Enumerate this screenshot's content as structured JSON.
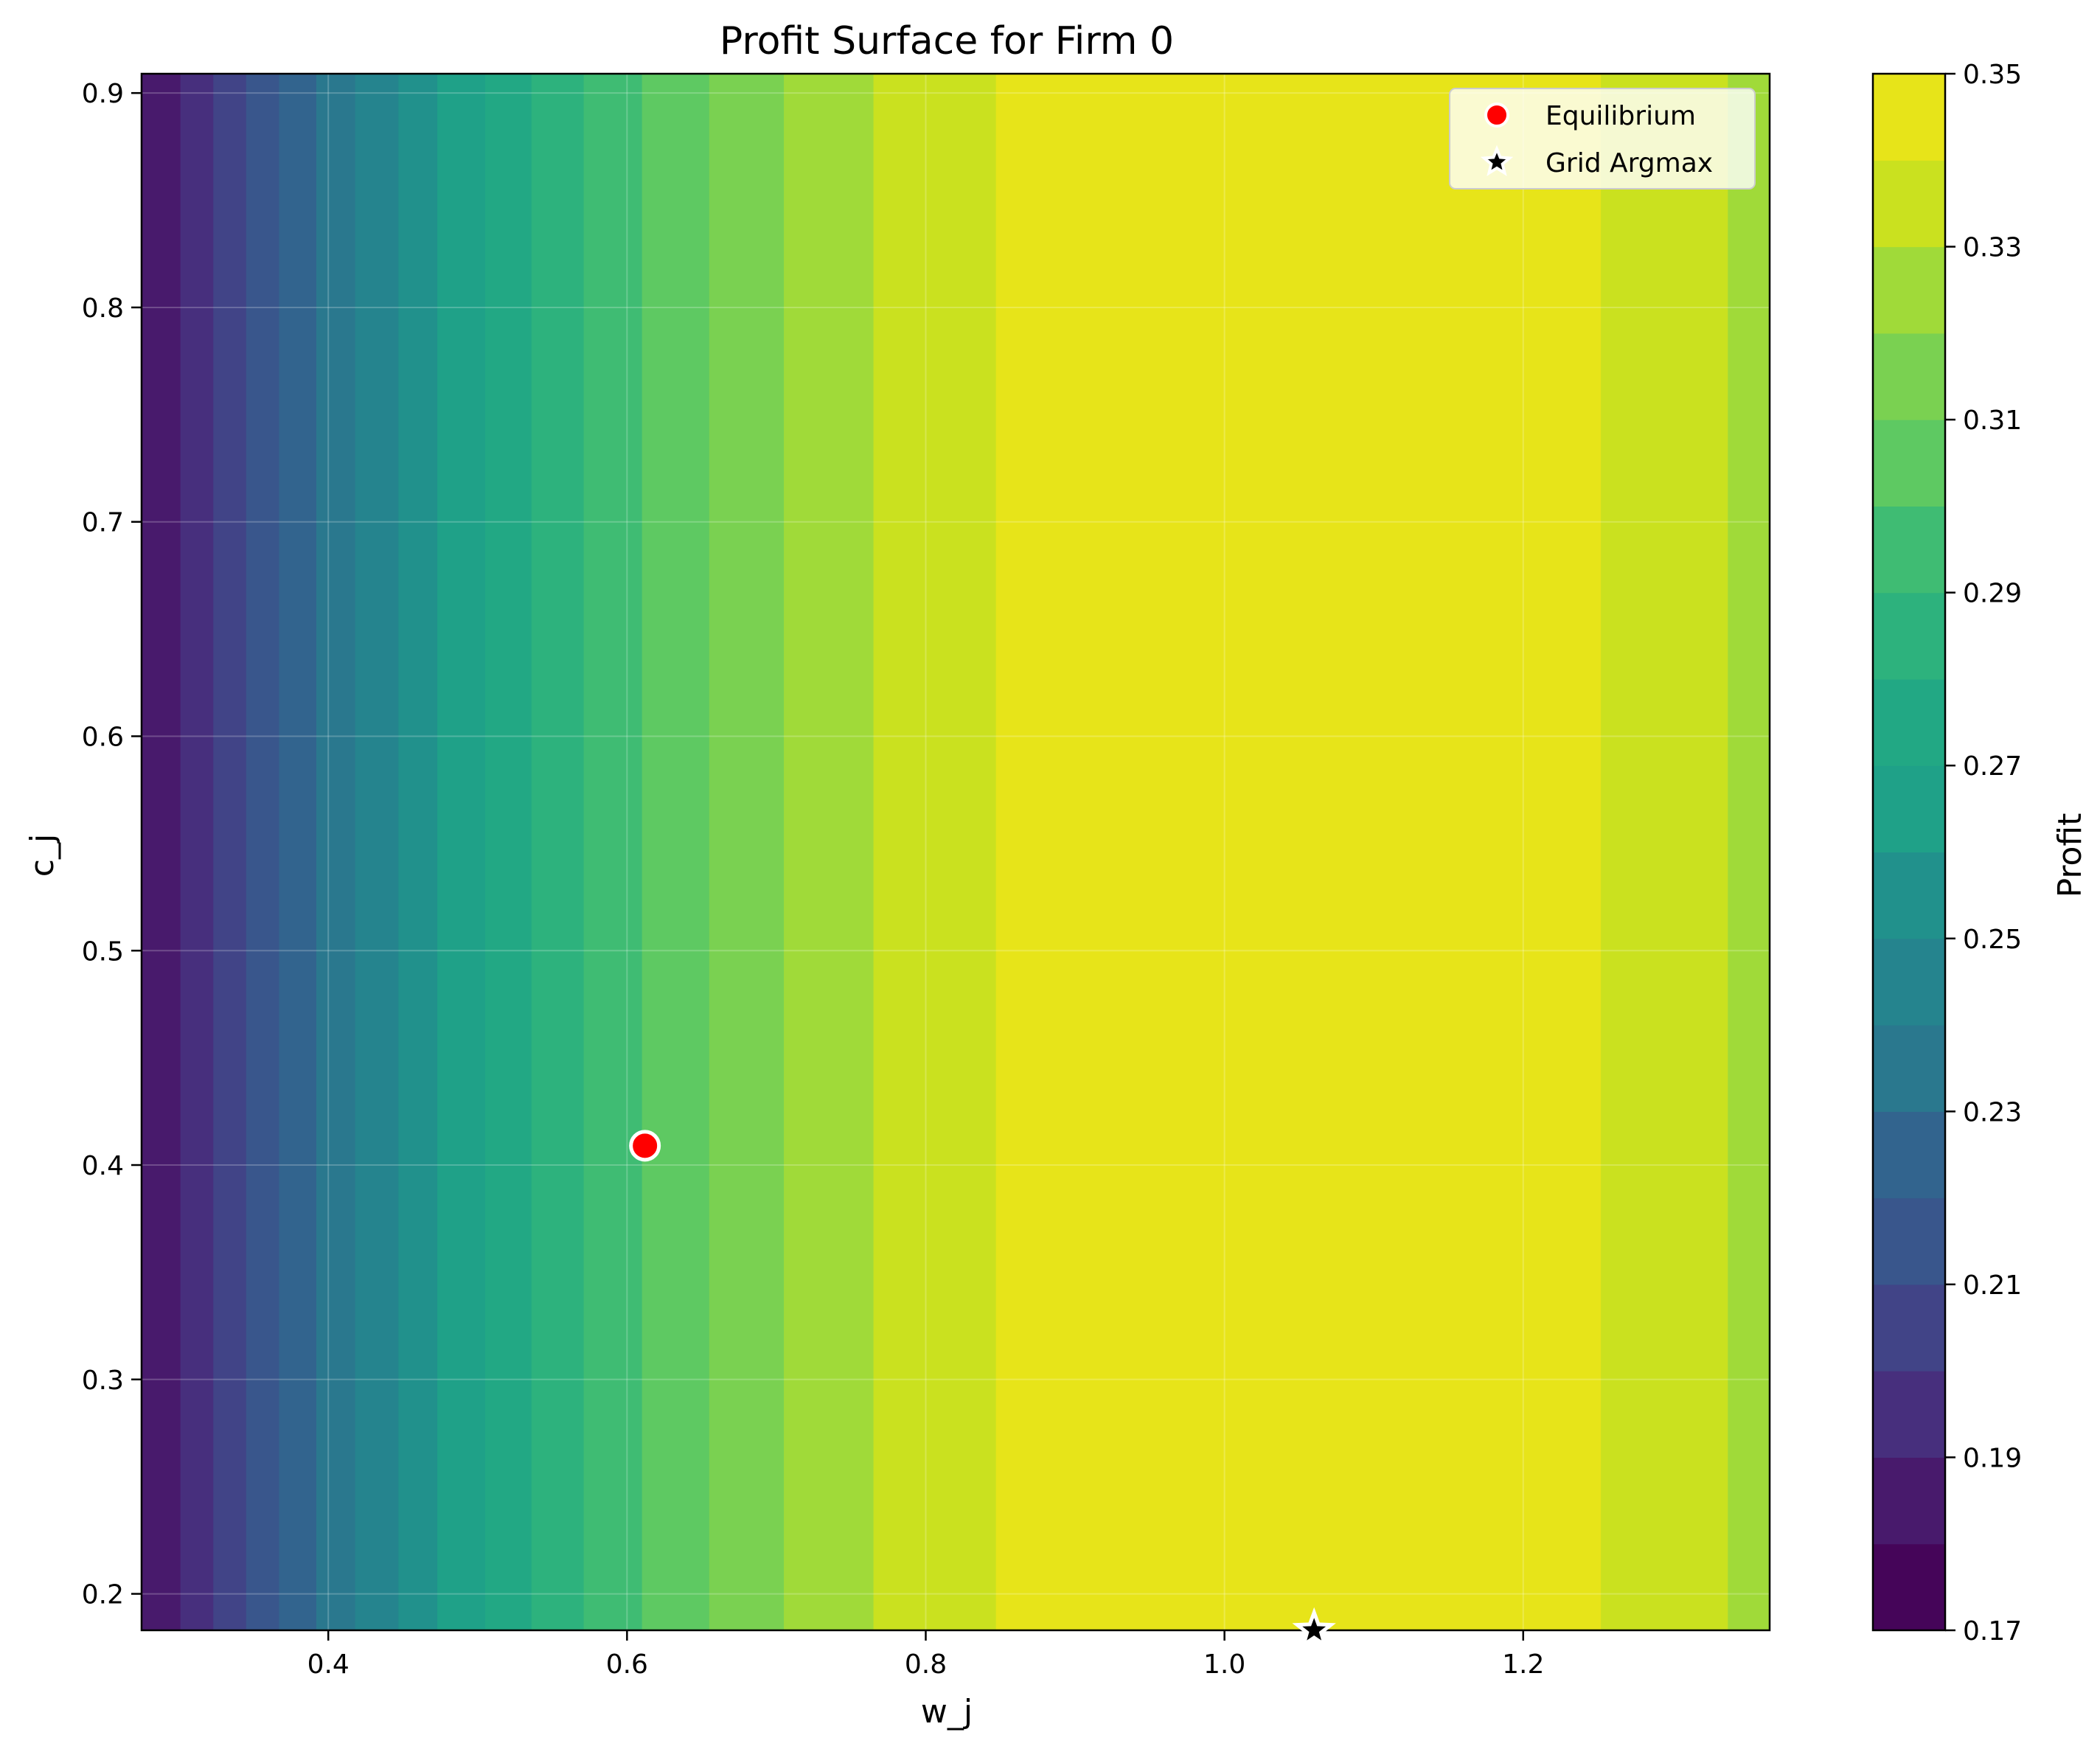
{
  "chart_data": {
    "type": "heatmap",
    "subtype": "filled-contour",
    "title": "Profit Surface for Firm 0",
    "xlabel": "w_j",
    "ylabel": "c_j",
    "xlim": [
      0.275,
      1.365
    ],
    "ylim": [
      0.183,
      0.909
    ],
    "x_ticks": [
      0.4,
      0.6,
      0.8,
      1.0,
      1.2
    ],
    "x_tick_labels": [
      "0.4",
      "0.6",
      "0.8",
      "1.0",
      "1.2"
    ],
    "y_ticks": [
      0.2,
      0.3,
      0.4,
      0.5,
      0.6,
      0.7,
      0.8,
      0.9
    ],
    "y_tick_labels": [
      "0.2",
      "0.3",
      "0.4",
      "0.5",
      "0.6",
      "0.7",
      "0.8",
      "0.9"
    ],
    "grid": true,
    "contour_bands": [
      {
        "x0": 0.275,
        "x1": 0.301,
        "level": 0.18
      },
      {
        "x0": 0.301,
        "x1": 0.323,
        "level": 0.19
      },
      {
        "x0": 0.323,
        "x1": 0.345,
        "level": 0.2
      },
      {
        "x0": 0.345,
        "x1": 0.367,
        "level": 0.21
      },
      {
        "x0": 0.367,
        "x1": 0.392,
        "level": 0.22
      },
      {
        "x0": 0.392,
        "x1": 0.418,
        "level": 0.23
      },
      {
        "x0": 0.418,
        "x1": 0.447,
        "level": 0.24
      },
      {
        "x0": 0.447,
        "x1": 0.473,
        "level": 0.25
      },
      {
        "x0": 0.473,
        "x1": 0.505,
        "level": 0.26
      },
      {
        "x0": 0.505,
        "x1": 0.536,
        "level": 0.27
      },
      {
        "x0": 0.536,
        "x1": 0.571,
        "level": 0.28
      },
      {
        "x0": 0.571,
        "x1": 0.61,
        "level": 0.29
      },
      {
        "x0": 0.61,
        "x1": 0.655,
        "level": 0.3
      },
      {
        "x0": 0.655,
        "x1": 0.705,
        "level": 0.31
      },
      {
        "x0": 0.705,
        "x1": 0.765,
        "level": 0.32
      },
      {
        "x0": 0.765,
        "x1": 0.847,
        "level": 0.33
      },
      {
        "x0": 0.847,
        "x1": 1.252,
        "level": 0.34
      },
      {
        "x0": 1.252,
        "x1": 1.337,
        "level": 0.33
      },
      {
        "x0": 1.337,
        "x1": 1.365,
        "level": 0.32
      }
    ],
    "colorbar": {
      "label": "Profit",
      "min": 0.17,
      "max": 0.35,
      "levels": [
        0.17,
        0.18,
        0.19,
        0.2,
        0.21,
        0.22,
        0.23,
        0.24,
        0.25,
        0.26,
        0.27,
        0.28,
        0.29,
        0.3,
        0.31,
        0.32,
        0.33,
        0.34,
        0.35
      ],
      "colors": [
        "#450559",
        "#481a6c",
        "#472f7d",
        "#414487",
        "#39568c",
        "#32648e",
        "#2a788e",
        "#25848e",
        "#21918c",
        "#1fa188",
        "#22a884",
        "#2db27d",
        "#3fbc73",
        "#5ec962",
        "#7ad151",
        "#a0da39",
        "#cae11f",
        "#e7e419"
      ],
      "tick_values": [
        0.17,
        0.19,
        0.21,
        0.23,
        0.25,
        0.27,
        0.29,
        0.31,
        0.33,
        0.35
      ],
      "tick_labels": [
        "0.17",
        "0.19",
        "0.21",
        "0.23",
        "0.25",
        "0.27",
        "0.29",
        "0.31",
        "0.33",
        "0.35"
      ]
    },
    "points": [
      {
        "name": "Equilibrium",
        "x": 0.612,
        "y": 0.409,
        "marker": "circle",
        "color": "#ff0000"
      },
      {
        "name": "Grid Argmax",
        "x": 1.06,
        "y": 0.183,
        "marker": "star",
        "color": "#000000"
      }
    ],
    "legend": {
      "position": "top-right",
      "entries": [
        {
          "label": "Equilibrium",
          "marker": "circle",
          "color": "#ff0000"
        },
        {
          "label": "Grid Argmax",
          "marker": "star",
          "color": "#000000"
        }
      ]
    }
  }
}
